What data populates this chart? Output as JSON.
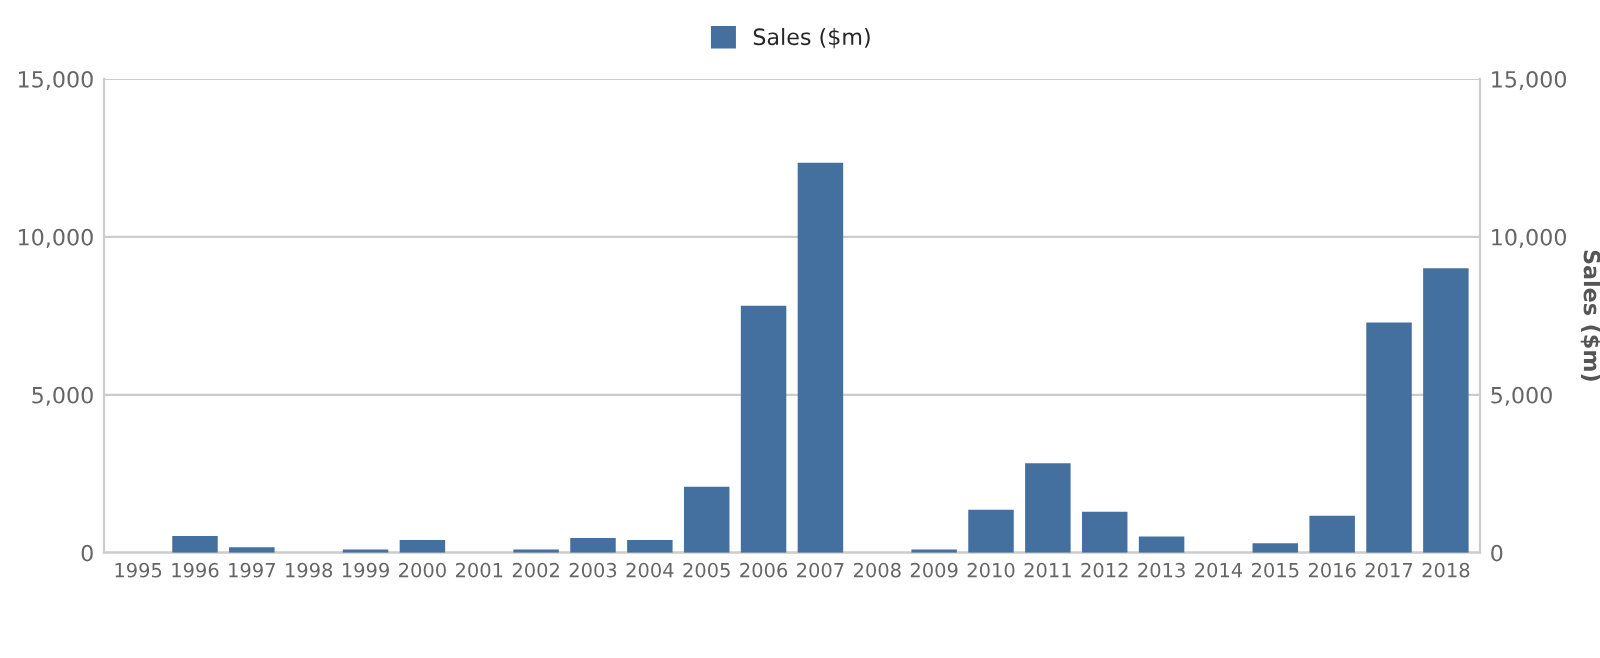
{
  "chart_data": {
    "type": "bar",
    "categories": [
      "1995",
      "1996",
      "1997",
      "1998",
      "1999",
      "2000",
      "2001",
      "2002",
      "2003",
      "2004",
      "2005",
      "2006",
      "2007",
      "2008",
      "2009",
      "2010",
      "2011",
      "2012",
      "2013",
      "2014",
      "2015",
      "2016",
      "2017",
      "2018"
    ],
    "series": [
      {
        "name": "Sales ($m)",
        "color": "#44709f",
        "values": [
          0,
          530,
          170,
          0,
          100,
          400,
          0,
          100,
          470,
          400,
          2090,
          7820,
          12350,
          0,
          100,
          1360,
          2830,
          1300,
          510,
          0,
          300,
          1170,
          7290,
          9010
        ]
      }
    ],
    "ylim": [
      0,
      15000
    ],
    "yticks": [
      {
        "value": 0,
        "label": "0"
      },
      {
        "value": 5000,
        "label": "5,000"
      },
      {
        "value": 10000,
        "label": "10,000"
      },
      {
        "value": 15000,
        "label": "15,000"
      }
    ],
    "y2lim": [
      0,
      15000
    ],
    "y2ticks": [
      {
        "value": 0,
        "label": "0"
      },
      {
        "value": 5000,
        "label": "5,000"
      },
      {
        "value": 10000,
        "label": "10,000"
      },
      {
        "value": 15000,
        "label": "15,000"
      }
    ],
    "y2label": "Sales ($m)",
    "grid": "y",
    "legend": "top"
  }
}
